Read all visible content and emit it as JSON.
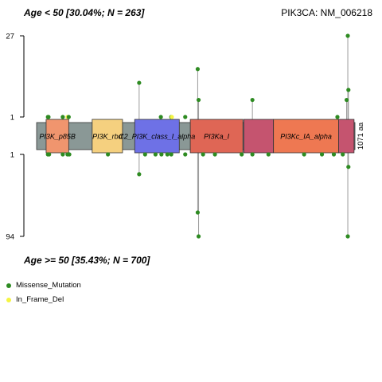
{
  "header": {
    "top_left": "Age < 50 [30.04%; N = 263]",
    "top_right": "PIK3CA: NM_006218",
    "bottom_left": "Age >= 50 [35.43%; N = 700]"
  },
  "chart_data": {
    "type": "lollipop",
    "protein_length": 1071,
    "length_label": "1071 aa",
    "top_axis": {
      "ticks": [
        "27",
        "1"
      ],
      "max": 27
    },
    "bottom_axis": {
      "ticks": [
        "1",
        "94"
      ],
      "max": 94
    },
    "backbone_color": "#8a9896",
    "domains": [
      {
        "name": "PI3K_p85B",
        "start": 32,
        "end": 108,
        "color": "#f0956e"
      },
      {
        "name": "PI3K_rbd",
        "start": 187,
        "end": 289,
        "color": "#f5d07f"
      },
      {
        "name": "C2_PI3K_class_I_alpha",
        "start": 330,
        "end": 480,
        "color": "#6e71e6"
      },
      {
        "name": "PI3Ka_I",
        "start": 517,
        "end": 694,
        "color": "#df6655"
      },
      {
        "name": "",
        "start": 697,
        "end": 797,
        "color": "#c5546f"
      },
      {
        "name": "PI3Kc_IA_alpha",
        "start": 797,
        "end": 1016,
        "color": "#ee7852"
      },
      {
        "name": "",
        "start": 1016,
        "end": 1068,
        "color": "#c5546f"
      }
    ],
    "top_mutations": [
      {
        "pos": 38,
        "count": 1,
        "type": "Missense_Mutation"
      },
      {
        "pos": 40,
        "count": 1,
        "type": "Missense_Mutation"
      },
      {
        "pos": 88,
        "count": 1,
        "type": "Missense_Mutation"
      },
      {
        "pos": 104,
        "count": 1,
        "type": "In_Frame_Del"
      },
      {
        "pos": 108,
        "count": 1,
        "type": "Missense_Mutation"
      },
      {
        "pos": 345,
        "count": 4,
        "type": "Missense_Mutation"
      },
      {
        "pos": 418,
        "count": 1,
        "type": "Missense_Mutation"
      },
      {
        "pos": 453,
        "count": 1,
        "type": "Missense_Mutation"
      },
      {
        "pos": 455,
        "count": 1,
        "type": "In_Frame_Del"
      },
      {
        "pos": 500,
        "count": 1,
        "type": "Missense_Mutation"
      },
      {
        "pos": 542,
        "count": 7,
        "type": "Missense_Mutation"
      },
      {
        "pos": 545,
        "count": 2,
        "type": "Missense_Mutation"
      },
      {
        "pos": 726,
        "count": 2,
        "type": "Missense_Mutation"
      },
      {
        "pos": 1012,
        "count": 1,
        "type": "Missense_Mutation"
      },
      {
        "pos": 1043,
        "count": 2,
        "type": "Missense_Mutation"
      },
      {
        "pos": 1047,
        "count": 27,
        "type": "Missense_Mutation"
      },
      {
        "pos": 1049,
        "count": 3,
        "type": "Missense_Mutation"
      }
    ],
    "bottom_mutations": [
      {
        "pos": 38,
        "count": 1,
        "type": "Missense_Mutation"
      },
      {
        "pos": 42,
        "count": 1,
        "type": "Missense_Mutation"
      },
      {
        "pos": 88,
        "count": 1,
        "type": "Missense_Mutation"
      },
      {
        "pos": 104,
        "count": 1,
        "type": "Missense_Mutation"
      },
      {
        "pos": 110,
        "count": 1,
        "type": "Missense_Mutation"
      },
      {
        "pos": 240,
        "count": 1,
        "type": "Missense_Mutation"
      },
      {
        "pos": 345,
        "count": 3,
        "type": "Missense_Mutation"
      },
      {
        "pos": 365,
        "count": 1,
        "type": "Missense_Mutation"
      },
      {
        "pos": 400,
        "count": 1,
        "type": "Missense_Mutation"
      },
      {
        "pos": 420,
        "count": 1,
        "type": "Missense_Mutation"
      },
      {
        "pos": 440,
        "count": 1,
        "type": "Missense_Mutation"
      },
      {
        "pos": 453,
        "count": 1,
        "type": "Missense_Mutation"
      },
      {
        "pos": 500,
        "count": 1,
        "type": "Missense_Mutation"
      },
      {
        "pos": 542,
        "count": 25,
        "type": "Missense_Mutation"
      },
      {
        "pos": 545,
        "count": 94,
        "type": "Missense_Mutation"
      },
      {
        "pos": 560,
        "count": 1,
        "type": "Missense_Mutation"
      },
      {
        "pos": 600,
        "count": 1,
        "type": "Missense_Mutation"
      },
      {
        "pos": 690,
        "count": 1,
        "type": "Missense_Mutation"
      },
      {
        "pos": 726,
        "count": 1,
        "type": "Missense_Mutation"
      },
      {
        "pos": 780,
        "count": 1,
        "type": "Missense_Mutation"
      },
      {
        "pos": 900,
        "count": 1,
        "type": "Missense_Mutation"
      },
      {
        "pos": 960,
        "count": 1,
        "type": "Missense_Mutation"
      },
      {
        "pos": 1000,
        "count": 1,
        "type": "Missense_Mutation"
      },
      {
        "pos": 1030,
        "count": 1,
        "type": "Missense_Mutation"
      },
      {
        "pos": 1047,
        "count": 94,
        "type": "Missense_Mutation"
      },
      {
        "pos": 1049,
        "count": 2,
        "type": "Missense_Mutation"
      }
    ],
    "legend": [
      {
        "label": "Missense_Mutation",
        "color": "#2e8b22"
      },
      {
        "label": "In_Frame_Del",
        "color": "#f5f542"
      }
    ]
  }
}
